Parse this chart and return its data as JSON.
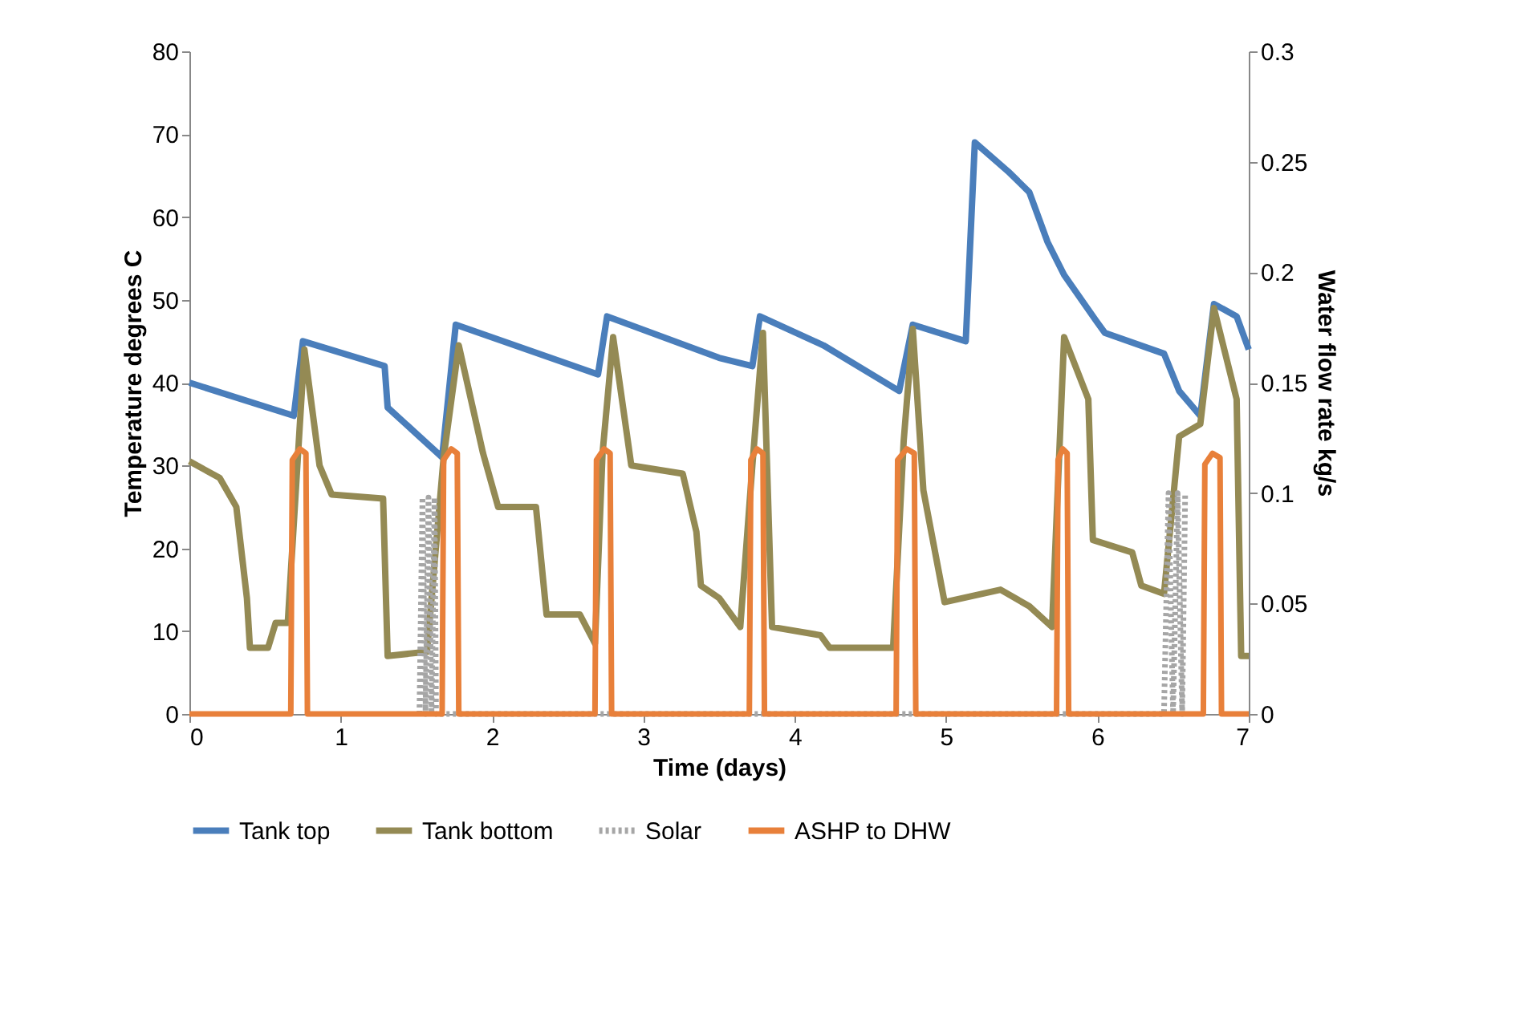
{
  "chart_data": {
    "type": "line",
    "xlabel": "Time (days)",
    "ylabel": "Temperature degrees C",
    "y2label": "Water flow rate kg/s",
    "xlim": [
      0,
      7
    ],
    "xticks": [
      0,
      1,
      2,
      3,
      4,
      5,
      6,
      7
    ],
    "ylim": [
      0,
      80
    ],
    "yticks": [
      0,
      10,
      20,
      30,
      40,
      50,
      60,
      70,
      80
    ],
    "y2lim": [
      0,
      0.3
    ],
    "y2ticks": [
      0,
      0.05,
      0.1,
      0.15,
      0.2,
      0.25,
      0.3
    ],
    "grid": false,
    "legend": "bottom",
    "marker": "none",
    "series": [
      {
        "name": "Tank top",
        "color": "#4a7ebb",
        "axis": "y",
        "line_style": "solid",
        "x": [
          0,
          0.69,
          0.75,
          1.29,
          1.31,
          1.49,
          1.67,
          1.76,
          2.7,
          2.76,
          3.5,
          3.72,
          3.77,
          4.19,
          4.69,
          4.78,
          5.13,
          5.19,
          5.41,
          5.55,
          5.67,
          5.78,
          5.99,
          6.05,
          6.44,
          6.54,
          6.68,
          6.77,
          6.92,
          7.0
        ],
        "values": [
          40,
          36,
          45,
          42,
          37,
          34,
          31,
          47,
          41,
          48,
          43,
          42,
          48,
          44.5,
          39,
          47,
          45,
          69,
          65.5,
          63,
          57,
          53,
          47.5,
          46,
          43.5,
          39,
          36,
          49.5,
          48,
          44
        ]
      },
      {
        "name": "Tank bottom",
        "color": "#948a54",
        "axis": "y",
        "line_style": "solid",
        "x": [
          0,
          0.2,
          0.31,
          0.38,
          0.4,
          0.52,
          0.57,
          0.65,
          0.76,
          0.86,
          0.94,
          1.28,
          1.31,
          1.57,
          1.68,
          1.78,
          1.94,
          2.04,
          2.29,
          2.36,
          2.58,
          2.68,
          2.73,
          2.8,
          2.92,
          3.26,
          3.35,
          3.38,
          3.5,
          3.64,
          3.72,
          3.79,
          3.85,
          4.17,
          4.23,
          4.65,
          4.72,
          4.78,
          4.85,
          4.99,
          5.36,
          5.55,
          5.7,
          5.78,
          5.94,
          5.97,
          6.23,
          6.29,
          6.44,
          6.54,
          6.68,
          6.77,
          6.92,
          6.95,
          7.0
        ],
        "values": [
          30.5,
          28.5,
          25,
          14,
          8,
          8,
          11,
          11,
          44,
          30,
          26.5,
          26,
          7,
          7.5,
          31,
          44.5,
          31.5,
          25,
          25,
          12,
          12,
          8.5,
          31.5,
          45.5,
          30,
          29,
          22,
          15.5,
          14,
          10.5,
          30,
          46,
          10.5,
          9.5,
          8,
          8,
          33,
          46.5,
          27,
          13.5,
          15,
          13,
          10.5,
          45.5,
          38,
          21,
          19.5,
          15.5,
          14.5,
          33.5,
          35,
          49,
          38,
          7,
          7
        ]
      },
      {
        "name": "Solar",
        "color": "#a6a6a6",
        "axis": "y2",
        "line_style": "dotted",
        "x": [
          1.52,
          1.54,
          1.56,
          1.58,
          1.6,
          1.62,
          1.63,
          6.44,
          6.47,
          6.5,
          6.53,
          6.56,
          6.58
        ],
        "values": [
          0,
          0.098,
          0,
          0.098,
          0,
          0.098,
          0,
          0,
          0.1,
          0,
          0.1,
          0,
          0.1
        ]
      },
      {
        "name": "ASHP to DHW",
        "color": "#e8803a",
        "axis": "y2",
        "line_style": "solid",
        "x": [
          0,
          0.67,
          0.68,
          0.73,
          0.77,
          0.78,
          1.67,
          1.68,
          1.73,
          1.77,
          1.78,
          2.68,
          2.69,
          2.74,
          2.78,
          2.79,
          3.7,
          3.71,
          3.75,
          3.79,
          3.8,
          4.67,
          4.68,
          4.74,
          4.79,
          4.8,
          5.73,
          5.74,
          5.77,
          5.8,
          5.81,
          6.7,
          6.71,
          6.76,
          6.81,
          6.82,
          7.0
        ],
        "values": [
          0,
          0,
          0.115,
          0.12,
          0.118,
          0,
          0,
          0.115,
          0.12,
          0.118,
          0,
          0,
          0.115,
          0.12,
          0.118,
          0,
          0,
          0.115,
          0.12,
          0.118,
          0,
          0,
          0.115,
          0.12,
          0.118,
          0,
          0,
          0.115,
          0.12,
          0.118,
          0,
          0,
          0.113,
          0.118,
          0.116,
          0,
          0
        ]
      }
    ]
  }
}
